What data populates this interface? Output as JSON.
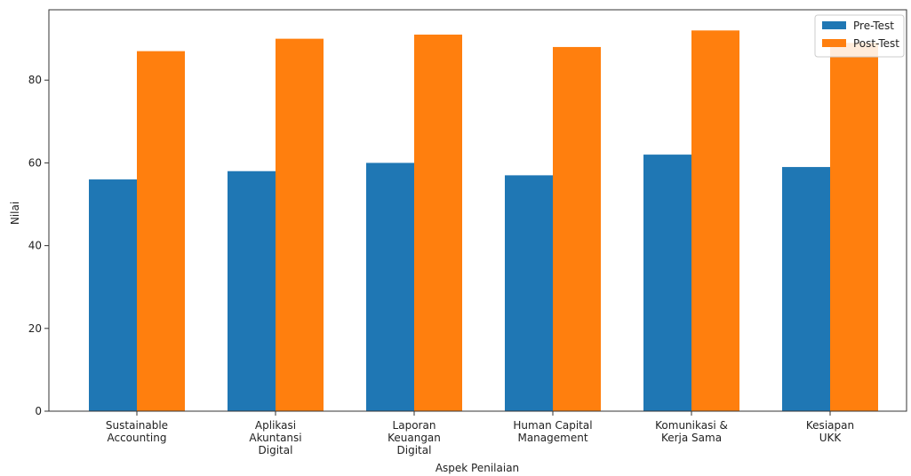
{
  "chart_data": {
    "type": "bar",
    "categories": [
      "Sustainable\nAccounting",
      "Aplikasi\nAkuntansi\nDigital",
      "Laporan\nKeuangan\nDigital",
      "Human Capital\nManagement",
      "Komunikasi &\nKerja Sama",
      "Kesiapan\nUKK"
    ],
    "series": [
      {
        "name": "Pre-Test",
        "color": "#1f77b4",
        "values": [
          56,
          58,
          60,
          57,
          62,
          59
        ]
      },
      {
        "name": "Post-Test",
        "color": "#ff7f0e",
        "values": [
          87,
          90,
          91,
          88,
          92,
          89
        ]
      }
    ],
    "title": "",
    "xlabel": "Aspek Penilaian",
    "ylabel": "Nilai",
    "ylim": [
      0,
      97
    ],
    "yticks": [
      0,
      20,
      40,
      60,
      80
    ],
    "grid": false,
    "legend_position": "top-right"
  }
}
